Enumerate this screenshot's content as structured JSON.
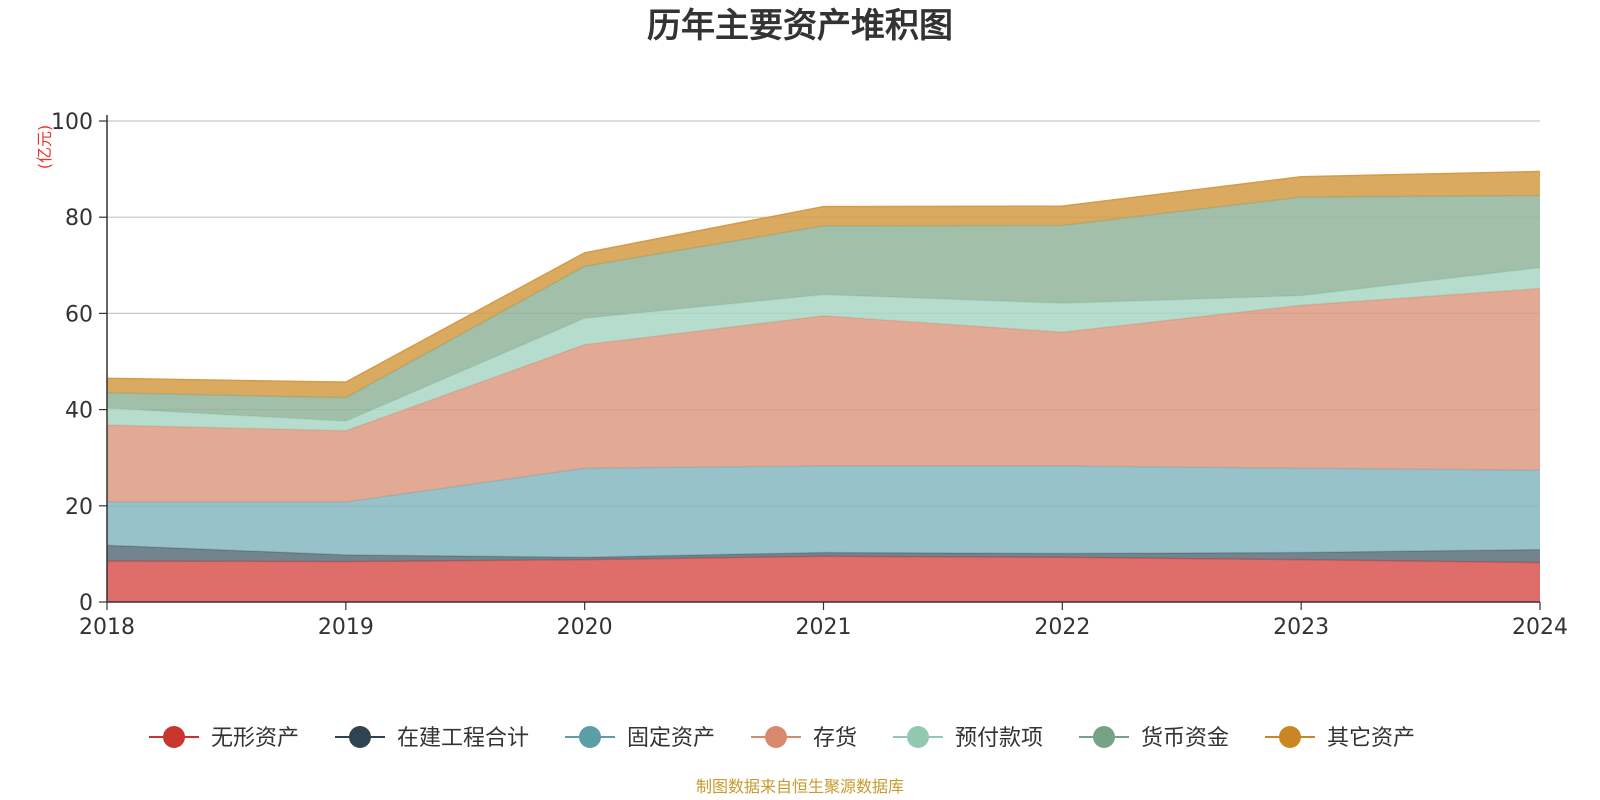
{
  "chart_data": {
    "type": "area",
    "stacked": true,
    "title": "历年主要资产堆积图",
    "unit_label": "(亿元)",
    "x": [
      "2018",
      "2019",
      "2020",
      "2021",
      "2022",
      "2023",
      "2024"
    ],
    "ylim": [
      0,
      100
    ],
    "yticks": [
      "0",
      "20",
      "40",
      "60",
      "80",
      "100"
    ],
    "grid": true,
    "legend_position": "bottom",
    "series": [
      {
        "name": "无形资产",
        "color": "#d9534f",
        "legend_color": "#c9342f",
        "values": [
          8.5,
          8.4,
          8.8,
          9.5,
          9.3,
          8.8,
          8.2
        ]
      },
      {
        "name": "在建工程合计",
        "color": "#5b6e7a",
        "legend_color": "#2e4453",
        "values": [
          3.3,
          1.4,
          0.5,
          0.8,
          0.8,
          1.5,
          2.7
        ]
      },
      {
        "name": "固定资产",
        "color": "#86b7c0",
        "legend_color": "#5b9ea6",
        "values": [
          9.0,
          11.0,
          18.5,
          18.0,
          18.2,
          17.5,
          16.5
        ]
      },
      {
        "name": "存货",
        "color": "#dd9a82",
        "legend_color": "#d98a6c",
        "values": [
          16.0,
          14.8,
          25.7,
          31.2,
          27.8,
          33.9,
          37.8
        ]
      },
      {
        "name": "预付款项",
        "color": "#a8d6c4",
        "legend_color": "#91c9b0",
        "values": [
          3.5,
          2.0,
          5.5,
          4.4,
          6.0,
          2.0,
          4.3
        ]
      },
      {
        "name": "货币资金",
        "color": "#90b49a",
        "legend_color": "#76a385",
        "values": [
          3.2,
          4.9,
          10.8,
          14.3,
          16.2,
          20.5,
          15.0
        ]
      },
      {
        "name": "其它资产",
        "color": "#d59b45",
        "legend_color": "#ca8622",
        "values": [
          3.0,
          3.2,
          2.8,
          4.0,
          4.0,
          4.2,
          5.0
        ]
      }
    ],
    "source_note": "制图数据来自恒生聚源数据库"
  }
}
